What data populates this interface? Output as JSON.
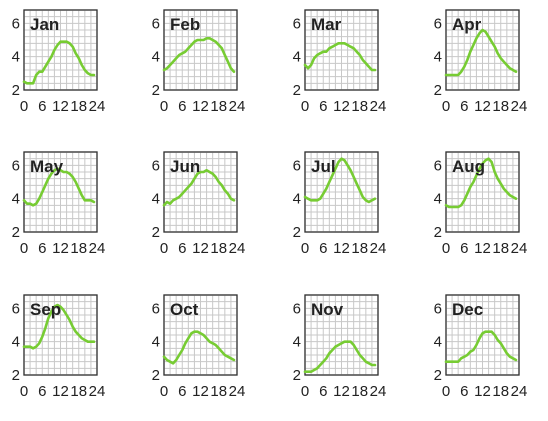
{
  "chart_data": {
    "type": "line",
    "x_ticks": [
      0,
      6,
      12,
      18,
      24
    ],
    "y_ticks": [
      2,
      4,
      6
    ],
    "xlim": [
      0,
      24
    ],
    "ylim": [
      2,
      6.8
    ],
    "grid": true,
    "line_color": "#77cc33",
    "panels": [
      {
        "title": "Jan",
        "x": [
          0,
          1,
          2,
          3,
          4,
          5,
          6,
          7,
          8,
          9,
          10,
          11,
          12,
          13,
          14,
          15,
          16,
          17,
          18,
          19,
          20,
          21,
          22,
          23
        ],
        "y": [
          2.5,
          2.4,
          2.4,
          2.4,
          2.9,
          3.1,
          3.1,
          3.4,
          3.7,
          4.0,
          4.4,
          4.7,
          4.9,
          4.9,
          4.9,
          4.8,
          4.6,
          4.2,
          3.9,
          3.5,
          3.2,
          3.0,
          2.9,
          2.9
        ]
      },
      {
        "title": "Feb",
        "x": [
          0,
          1,
          2,
          3,
          4,
          5,
          6,
          7,
          8,
          9,
          10,
          11,
          12,
          13,
          14,
          15,
          16,
          17,
          18,
          19,
          20,
          21,
          22,
          23
        ],
        "y": [
          3.2,
          3.3,
          3.5,
          3.7,
          3.9,
          4.1,
          4.2,
          4.3,
          4.5,
          4.7,
          4.9,
          5.0,
          5.0,
          5.0,
          5.1,
          5.1,
          5.0,
          4.9,
          4.7,
          4.5,
          4.1,
          3.7,
          3.3,
          3.1
        ]
      },
      {
        "title": "Mar",
        "x": [
          0,
          1,
          2,
          3,
          4,
          5,
          6,
          7,
          8,
          9,
          10,
          11,
          12,
          13,
          14,
          15,
          16,
          17,
          18,
          19,
          20,
          21,
          22,
          23
        ],
        "y": [
          3.5,
          3.3,
          3.5,
          3.9,
          4.1,
          4.2,
          4.3,
          4.3,
          4.5,
          4.6,
          4.7,
          4.8,
          4.8,
          4.8,
          4.7,
          4.6,
          4.5,
          4.3,
          4.1,
          3.8,
          3.6,
          3.4,
          3.2,
          3.2
        ]
      },
      {
        "title": "Apr",
        "x": [
          0,
          1,
          2,
          3,
          4,
          5,
          6,
          7,
          8,
          9,
          10,
          11,
          12,
          13,
          14,
          15,
          16,
          17,
          18,
          19,
          20,
          21,
          22,
          23
        ],
        "y": [
          2.9,
          2.9,
          2.9,
          2.9,
          2.9,
          3.1,
          3.4,
          3.8,
          4.3,
          4.7,
          5.1,
          5.4,
          5.6,
          5.5,
          5.2,
          4.9,
          4.6,
          4.2,
          3.9,
          3.7,
          3.5,
          3.3,
          3.2,
          3.1
        ]
      },
      {
        "title": "May",
        "x": [
          0,
          1,
          2,
          3,
          4,
          5,
          6,
          7,
          8,
          9,
          10,
          11,
          12,
          13,
          14,
          15,
          16,
          17,
          18,
          19,
          20,
          21,
          22,
          23
        ],
        "y": [
          3.9,
          3.7,
          3.7,
          3.6,
          3.7,
          4.0,
          4.4,
          4.8,
          5.2,
          5.5,
          5.7,
          5.8,
          5.7,
          5.6,
          5.6,
          5.5,
          5.3,
          5.0,
          4.6,
          4.2,
          3.9,
          3.9,
          3.9,
          3.8
        ]
      },
      {
        "title": "Jun",
        "x": [
          0,
          1,
          2,
          3,
          4,
          5,
          6,
          7,
          8,
          9,
          10,
          11,
          12,
          13,
          14,
          15,
          16,
          17,
          18,
          19,
          20,
          21,
          22,
          23
        ],
        "y": [
          3.6,
          3.8,
          3.7,
          3.9,
          4.0,
          4.1,
          4.3,
          4.5,
          4.7,
          4.9,
          5.2,
          5.5,
          5.6,
          5.6,
          5.7,
          5.6,
          5.5,
          5.3,
          5.0,
          4.8,
          4.5,
          4.3,
          4.0,
          3.9
        ]
      },
      {
        "title": "Jul",
        "x": [
          0,
          1,
          2,
          3,
          4,
          5,
          6,
          7,
          8,
          9,
          10,
          11,
          12,
          13,
          14,
          15,
          16,
          17,
          18,
          19,
          20,
          21,
          22,
          23
        ],
        "y": [
          4.1,
          4.0,
          3.9,
          3.9,
          3.9,
          4.0,
          4.3,
          4.6,
          5.0,
          5.4,
          5.8,
          6.2,
          6.4,
          6.3,
          6.0,
          5.7,
          5.3,
          4.9,
          4.5,
          4.1,
          3.9,
          3.8,
          3.9,
          4.0
        ]
      },
      {
        "title": "Aug",
        "x": [
          0,
          1,
          2,
          3,
          4,
          5,
          6,
          7,
          8,
          9,
          10,
          11,
          12,
          13,
          14,
          15,
          16,
          17,
          18,
          19,
          20,
          21,
          22,
          23
        ],
        "y": [
          3.6,
          3.5,
          3.5,
          3.5,
          3.5,
          3.6,
          3.9,
          4.3,
          4.7,
          5.0,
          5.4,
          5.8,
          6.1,
          6.3,
          6.4,
          6.2,
          5.6,
          5.2,
          4.9,
          4.6,
          4.4,
          4.2,
          4.1,
          4.0
        ]
      },
      {
        "title": "Sep",
        "x": [
          0,
          1,
          2,
          3,
          4,
          5,
          6,
          7,
          8,
          9,
          10,
          11,
          12,
          13,
          14,
          15,
          16,
          17,
          18,
          19,
          20,
          21,
          22,
          23
        ],
        "y": [
          3.7,
          3.7,
          3.7,
          3.6,
          3.7,
          3.9,
          4.3,
          4.8,
          5.4,
          5.8,
          6.1,
          6.2,
          6.1,
          5.9,
          5.6,
          5.3,
          4.9,
          4.6,
          4.4,
          4.2,
          4.1,
          4.0,
          4.0,
          4.0
        ]
      },
      {
        "title": "Oct",
        "x": [
          0,
          1,
          2,
          3,
          4,
          5,
          6,
          7,
          8,
          9,
          10,
          11,
          12,
          13,
          14,
          15,
          16,
          17,
          18,
          19,
          20,
          21,
          22,
          23
        ],
        "y": [
          3.1,
          2.9,
          2.8,
          2.7,
          2.9,
          3.2,
          3.5,
          3.9,
          4.2,
          4.5,
          4.6,
          4.6,
          4.5,
          4.4,
          4.2,
          4.0,
          3.9,
          3.8,
          3.6,
          3.4,
          3.2,
          3.1,
          3.0,
          2.9
        ]
      },
      {
        "title": "Nov",
        "x": [
          0,
          1,
          2,
          3,
          4,
          5,
          6,
          7,
          8,
          9,
          10,
          11,
          12,
          13,
          14,
          15,
          16,
          17,
          18,
          19,
          20,
          21,
          22,
          23
        ],
        "y": [
          2.2,
          2.2,
          2.2,
          2.3,
          2.4,
          2.6,
          2.8,
          3.0,
          3.3,
          3.5,
          3.7,
          3.8,
          3.9,
          4.0,
          4.0,
          4.0,
          3.8,
          3.5,
          3.2,
          3.0,
          2.8,
          2.7,
          2.6,
          2.6
        ]
      },
      {
        "title": "Dec",
        "x": [
          0,
          1,
          2,
          3,
          4,
          5,
          6,
          7,
          8,
          9,
          10,
          11,
          12,
          13,
          14,
          15,
          16,
          17,
          18,
          19,
          20,
          21,
          22,
          23
        ],
        "y": [
          2.8,
          2.8,
          2.8,
          2.8,
          2.8,
          3.0,
          3.1,
          3.2,
          3.4,
          3.5,
          3.8,
          4.2,
          4.5,
          4.6,
          4.6,
          4.6,
          4.4,
          4.1,
          3.9,
          3.6,
          3.3,
          3.1,
          3.0,
          2.9
        ]
      }
    ]
  }
}
